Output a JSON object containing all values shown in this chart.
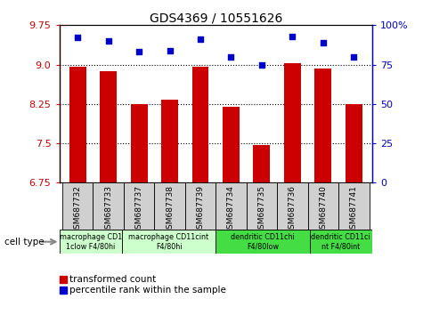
{
  "title": "GDS4369 / 10551626",
  "samples": [
    "GSM687732",
    "GSM687733",
    "GSM687737",
    "GSM687738",
    "GSM687739",
    "GSM687734",
    "GSM687735",
    "GSM687736",
    "GSM687740",
    "GSM687741"
  ],
  "bar_values": [
    8.96,
    8.87,
    8.25,
    8.33,
    8.96,
    8.19,
    7.47,
    9.02,
    8.93,
    8.25
  ],
  "dot_values": [
    92,
    90,
    83,
    84,
    91,
    80,
    75,
    93,
    89,
    80
  ],
  "ylim_left": [
    6.75,
    9.75
  ],
  "ylim_right": [
    0,
    100
  ],
  "yticks_left": [
    6.75,
    7.5,
    8.25,
    9.0,
    9.75
  ],
  "yticks_right": [
    0,
    25,
    50,
    75,
    100
  ],
  "hgrid_at": [
    7.5,
    8.25,
    9.0
  ],
  "bar_color": "#cc0000",
  "dot_color": "#0000cc",
  "plot_bg": "#ffffff",
  "cell_types": [
    {
      "label": "macrophage CD1\n1clow F4/80hi",
      "start": 0,
      "end": 2,
      "color": "#ccffcc"
    },
    {
      "label": "macrophage CD11cint\nF4/80hi",
      "start": 2,
      "end": 5,
      "color": "#ccffcc"
    },
    {
      "label": "dendritic CD11chi\nF4/80low",
      "start": 5,
      "end": 8,
      "color": "#44dd44"
    },
    {
      "label": "dendritic CD11ci\nnt F4/80int",
      "start": 8,
      "end": 10,
      "color": "#44dd44"
    }
  ],
  "cell_type_label": "cell type",
  "legend_bar_label": "transformed count",
  "legend_dot_label": "percentile rank within the sample",
  "n_samples": 10,
  "bar_width": 0.55
}
